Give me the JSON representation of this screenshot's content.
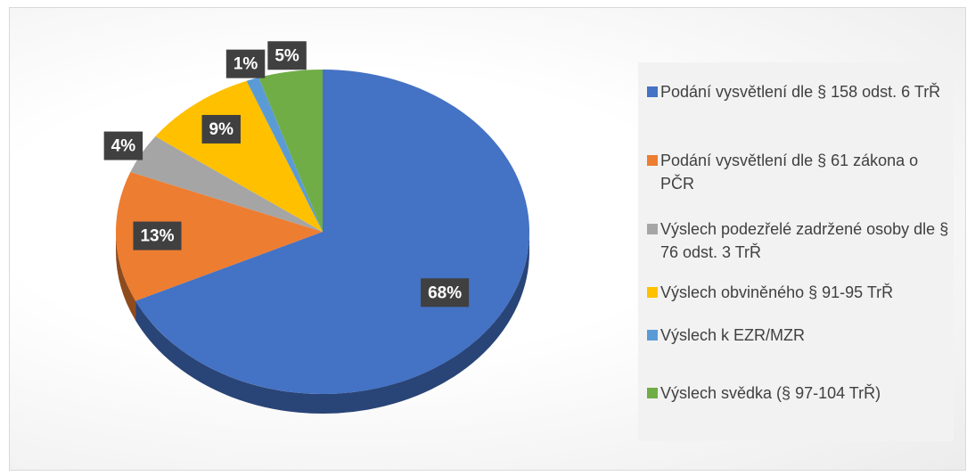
{
  "chart_data": {
    "type": "pie",
    "categories": [
      "Podání vysvětlení dle § 158 odst. 6 TrŘ",
      "Podání vysvětlení dle § 61 zákona o PČR",
      "Výslech podezřelé zadržené osoby dle § 76 odst. 3 TrŘ",
      "Výslech obviněného § 91-95 TrŘ",
      "Výslech k EZR/MZR",
      "Výslech svědka (§ 97-104 TrŘ)"
    ],
    "values": [
      68,
      13,
      4,
      9,
      1,
      5
    ],
    "value_labels": [
      "68%",
      "13%",
      "4%",
      "9%",
      "1%",
      "5%"
    ],
    "colors": [
      "#4472c4",
      "#ed7d31",
      "#a5a5a5",
      "#ffc000",
      "#5b9bd5",
      "#70ad47"
    ],
    "legend": "right"
  }
}
